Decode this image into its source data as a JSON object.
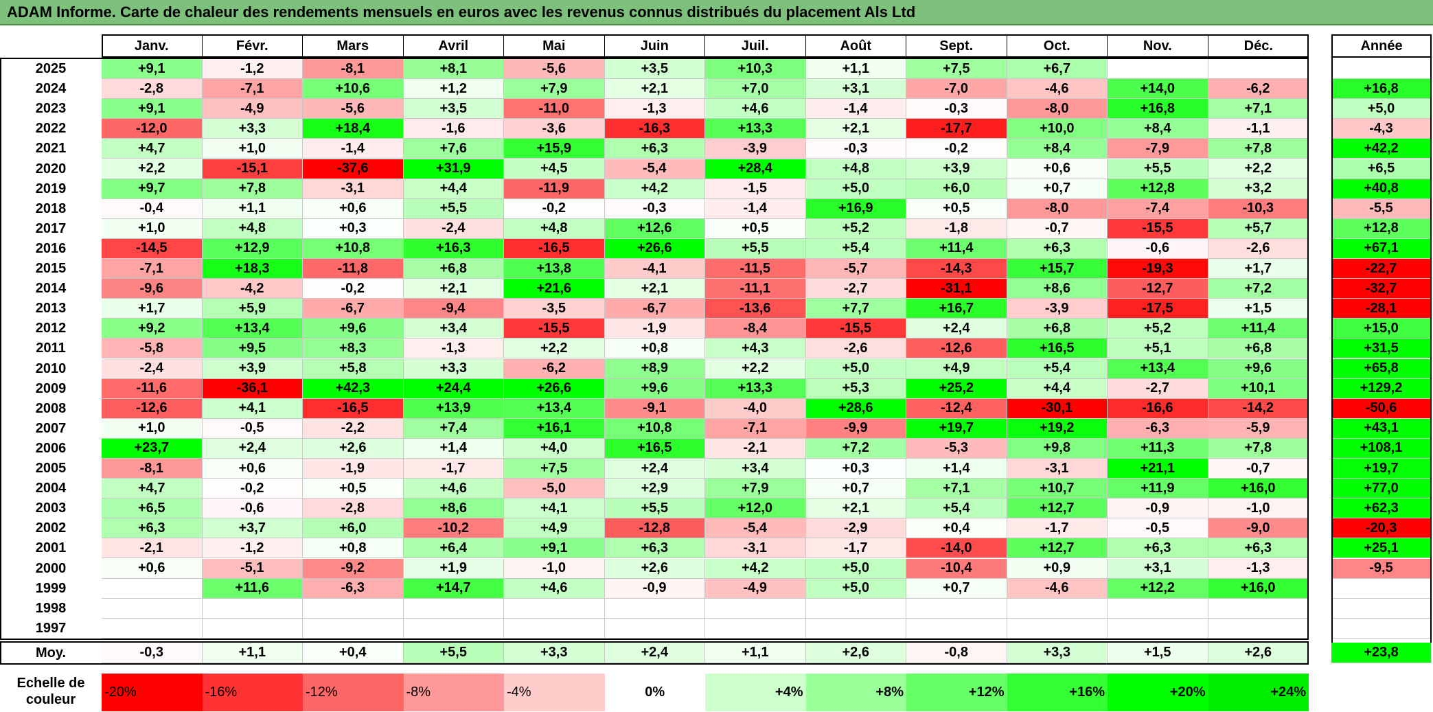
{
  "title": "ADAM Informe. Carte de chaleur des rendements mensuels en euros avec les revenus connus distribués du placement Als Ltd",
  "chart_data": {
    "type": "heatmap",
    "title": "ADAM Informe. Carte de chaleur des rendements mensuels en euros avec les revenus connus distribués du placement Als Ltd",
    "months": [
      "Janv.",
      "Févr.",
      "Mars",
      "Avril",
      "Mai",
      "Juin",
      "Juil.",
      "Août",
      "Sept.",
      "Oct.",
      "Nov.",
      "Déc."
    ],
    "year_header": "Année",
    "avg_label": "Moy.",
    "rows": [
      {
        "year": "2025",
        "values": [
          "+9,1",
          "-1,2",
          "-8,1",
          "+8,1",
          "-5,6",
          "+3,5",
          "+10,3",
          "+1,1",
          "+7,5",
          "+6,7",
          "",
          ""
        ],
        "annual": ""
      },
      {
        "year": "2024",
        "values": [
          "-2,8",
          "-7,1",
          "+10,6",
          "+1,2",
          "+7,9",
          "+2,1",
          "+7,0",
          "+3,1",
          "-7,0",
          "-4,6",
          "+14,0",
          "-6,2"
        ],
        "annual": "+16,8"
      },
      {
        "year": "2023",
        "values": [
          "+9,1",
          "-4,9",
          "-5,6",
          "+3,5",
          "-11,0",
          "-1,3",
          "+4,6",
          "-1,4",
          "-0,3",
          "-8,0",
          "+16,8",
          "+7,1"
        ],
        "annual": "+5,0"
      },
      {
        "year": "2022",
        "values": [
          "-12,0",
          "+3,3",
          "+18,4",
          "-1,6",
          "-3,6",
          "-16,3",
          "+13,3",
          "+2,1",
          "-17,7",
          "+10,0",
          "+8,4",
          "-1,1"
        ],
        "annual": "-4,3"
      },
      {
        "year": "2021",
        "values": [
          "+4,7",
          "+1,0",
          "-1,4",
          "+7,6",
          "+15,9",
          "+6,3",
          "-3,9",
          "-0,3",
          "-0,2",
          "+8,4",
          "-7,9",
          "+7,8"
        ],
        "annual": "+42,2"
      },
      {
        "year": "2020",
        "values": [
          "+2,2",
          "-15,1",
          "-37,6",
          "+31,9",
          "+4,5",
          "-5,4",
          "+28,4",
          "+4,8",
          "+3,9",
          "+0,6",
          "+5,5",
          "+2,2"
        ],
        "annual": "+6,5"
      },
      {
        "year": "2019",
        "values": [
          "+9,7",
          "+7,8",
          "-3,1",
          "+4,4",
          "-11,9",
          "+4,2",
          "-1,5",
          "+5,0",
          "+6,0",
          "+0,7",
          "+12,8",
          "+3,2"
        ],
        "annual": "+40,8"
      },
      {
        "year": "2018",
        "values": [
          "-0,4",
          "+1,1",
          "+0,6",
          "+5,5",
          "-0,2",
          "-0,3",
          "-1,4",
          "+16,9",
          "+0,5",
          "-8,0",
          "-7,4",
          "-10,3"
        ],
        "annual": "-5,5"
      },
      {
        "year": "2017",
        "values": [
          "+1,0",
          "+4,8",
          "+0,3",
          "-2,4",
          "+4,8",
          "+12,6",
          "+0,5",
          "+5,2",
          "-1,8",
          "-0,7",
          "-15,5",
          "+5,7"
        ],
        "annual": "+12,8"
      },
      {
        "year": "2016",
        "values": [
          "-14,5",
          "+12,9",
          "+10,8",
          "+16,3",
          "-16,5",
          "+26,6",
          "+5,5",
          "+5,4",
          "+11,4",
          "+6,3",
          "-0,6",
          "-2,6"
        ],
        "annual": "+67,1"
      },
      {
        "year": "2015",
        "values": [
          "-7,1",
          "+18,3",
          "-11,8",
          "+6,8",
          "+13,8",
          "-4,1",
          "-11,5",
          "-5,7",
          "-14,3",
          "+15,7",
          "-19,3",
          "+1,7"
        ],
        "annual": "-22,7"
      },
      {
        "year": "2014",
        "values": [
          "-9,6",
          "-4,2",
          "-0,2",
          "+2,1",
          "+21,6",
          "+2,1",
          "-11,1",
          "-2,7",
          "-31,1",
          "+8,6",
          "-12,7",
          "+7,2"
        ],
        "annual": "-32,7"
      },
      {
        "year": "2013",
        "values": [
          "+1,7",
          "+5,9",
          "-6,7",
          "-9,4",
          "-3,5",
          "-6,7",
          "-13,6",
          "+7,7",
          "+16,7",
          "-3,9",
          "-17,5",
          "+1,5"
        ],
        "annual": "-28,1"
      },
      {
        "year": "2012",
        "values": [
          "+9,2",
          "+13,4",
          "+9,6",
          "+3,4",
          "-15,5",
          "-1,9",
          "-8,4",
          "-15,5",
          "+2,4",
          "+6,8",
          "+5,2",
          "+11,4"
        ],
        "annual": "+15,0"
      },
      {
        "year": "2011",
        "values": [
          "-5,8",
          "+9,5",
          "+8,3",
          "-1,3",
          "+2,2",
          "+0,8",
          "+4,3",
          "-2,6",
          "-12,6",
          "+16,5",
          "+5,1",
          "+6,8"
        ],
        "annual": "+31,5"
      },
      {
        "year": "2010",
        "values": [
          "-2,4",
          "+3,9",
          "+5,8",
          "+3,3",
          "-6,2",
          "+8,9",
          "+2,2",
          "+5,0",
          "+4,9",
          "+5,4",
          "+13,4",
          "+9,6"
        ],
        "annual": "+65,8"
      },
      {
        "year": "2009",
        "values": [
          "-11,6",
          "-36,1",
          "+42,3",
          "+24,4",
          "+26,6",
          "+9,6",
          "+13,3",
          "+5,3",
          "+25,2",
          "+4,4",
          "-2,7",
          "+10,1"
        ],
        "annual": "+129,2"
      },
      {
        "year": "2008",
        "values": [
          "-12,6",
          "+4,1",
          "-16,5",
          "+13,9",
          "+13,4",
          "-9,1",
          "-4,0",
          "+28,6",
          "-12,4",
          "-30,1",
          "-16,6",
          "-14,2"
        ],
        "annual": "-50,6"
      },
      {
        "year": "2007",
        "values": [
          "+1,0",
          "-0,5",
          "-2,2",
          "+7,4",
          "+16,1",
          "+10,8",
          "-7,1",
          "-9,9",
          "+19,7",
          "+19,2",
          "-6,3",
          "-5,9"
        ],
        "annual": "+43,1"
      },
      {
        "year": "2006",
        "values": [
          "+23,7",
          "+2,4",
          "+2,6",
          "+1,4",
          "+4,0",
          "+16,5",
          "-2,1",
          "+7,2",
          "-5,3",
          "+9,8",
          "+11,3",
          "+7,8"
        ],
        "annual": "+108,1"
      },
      {
        "year": "2005",
        "values": [
          "-8,1",
          "+0,6",
          "-1,9",
          "-1,7",
          "+7,5",
          "+2,4",
          "+3,4",
          "+0,3",
          "+1,4",
          "-3,1",
          "+21,1",
          "-0,7"
        ],
        "annual": "+19,7"
      },
      {
        "year": "2004",
        "values": [
          "+4,7",
          "-0,2",
          "+0,5",
          "+4,6",
          "-5,0",
          "+2,9",
          "+7,9",
          "+0,7",
          "+7,1",
          "+10,7",
          "+11,9",
          "+16,0"
        ],
        "annual": "+77,0"
      },
      {
        "year": "2003",
        "values": [
          "+6,5",
          "-0,6",
          "-2,8",
          "+8,6",
          "+4,1",
          "+5,5",
          "+12,0",
          "+2,1",
          "+5,4",
          "+12,7",
          "-0,9",
          "-1,0"
        ],
        "annual": "+62,3"
      },
      {
        "year": "2002",
        "values": [
          "+6,3",
          "+3,7",
          "+6,0",
          "-10,2",
          "+4,9",
          "-12,8",
          "-5,4",
          "-2,9",
          "+0,4",
          "-1,7",
          "-0,5",
          "-9,0"
        ],
        "annual": "-20,3"
      },
      {
        "year": "2001",
        "values": [
          "-2,1",
          "-1,2",
          "+0,8",
          "+6,4",
          "+9,1",
          "+6,3",
          "-3,1",
          "-1,7",
          "-14,0",
          "+12,7",
          "+6,3",
          "+6,3"
        ],
        "annual": "+25,1"
      },
      {
        "year": "2000",
        "values": [
          "+0,6",
          "-5,1",
          "-9,2",
          "+1,9",
          "-1,0",
          "+2,6",
          "+4,2",
          "+5,0",
          "-10,4",
          "+0,9",
          "+3,1",
          "-1,3"
        ],
        "annual": "-9,5"
      },
      {
        "year": "1999",
        "values": [
          "",
          "+11,6",
          "-6,3",
          "+14,7",
          "+4,6",
          "-0,9",
          "-4,9",
          "+5,0",
          "+0,7",
          "-4,6",
          "+12,2",
          "+16,0"
        ],
        "annual": ""
      },
      {
        "year": "1998",
        "values": [
          "",
          "",
          "",
          "",
          "",
          "",
          "",
          "",
          "",
          "",
          "",
          ""
        ],
        "annual": ""
      },
      {
        "year": "1997",
        "values": [
          "",
          "",
          "",
          "",
          "",
          "",
          "",
          "",
          "",
          "",
          "",
          ""
        ],
        "annual": ""
      }
    ],
    "averages": {
      "values": [
        "-0,3",
        "+1,1",
        "+0,4",
        "+5,5",
        "+3,3",
        "+2,4",
        "+1,1",
        "+2,6",
        "-0,8",
        "+3,3",
        "+1,5",
        "+2,6"
      ],
      "annual": "+23,8"
    },
    "scale": {
      "label": "Echelle de couleur",
      "steps": [
        "-20%",
        "-16%",
        "-12%",
        "-8%",
        "-4%",
        "0%",
        "+4%",
        "+8%",
        "+12%",
        "+16%",
        "+20%",
        "+24%"
      ],
      "colors": [
        "#ff0000",
        "#ff3333",
        "#ff6666",
        "#ff9999",
        "#ffcccc",
        "#ffffff",
        "#ccffcc",
        "#99ff99",
        "#66ff66",
        "#33ff33",
        "#00ff00",
        "#00ee00"
      ]
    }
  }
}
